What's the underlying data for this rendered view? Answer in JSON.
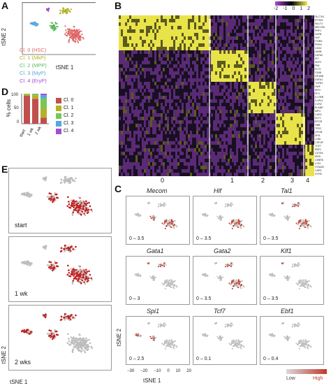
{
  "panels": {
    "A": {
      "label": "A",
      "x_axis": "tSNE 1",
      "y_axis": "tSNE 2",
      "legend": [
        {
          "text": "Cl. 0 (HSC)",
          "color": "#e06666"
        },
        {
          "text": "Cl. 1 (MkP)",
          "color": "#b5b12a"
        },
        {
          "text": "Cl. 2 (MPP)",
          "color": "#5fb85f"
        },
        {
          "text": "Cl. 3 (MyP)",
          "color": "#55a8e0"
        },
        {
          "text": "Cl. 4 (EryP)",
          "color": "#a24fd0"
        }
      ]
    },
    "B": {
      "label": "B",
      "colorbar_ticks": [
        "-2",
        "-1",
        "0",
        "1",
        "2"
      ],
      "cluster_labels": [
        "0",
        "1",
        "2",
        "3",
        "4"
      ],
      "genes": [
        "SLC7A1",
        "IFITM3",
        "MLLT3",
        "MECOM",
        "PRF1",
        "SAFB",
        "HLF",
        "ITGB3",
        "PRRX",
        "CD34",
        "JUNB",
        "GATA2",
        "KIT",
        "SDF2",
        "PIM",
        "FLT3",
        "CD48",
        "GP1BB",
        "GATA1",
        "TGFB1",
        "VWF",
        "IRF4",
        "PF4",
        "IL17RB",
        "IL1RL1",
        "CCR2",
        "ELANE",
        "MPO",
        "CAR2",
        "KLF1",
        "EPOR",
        "HBB",
        "TFRC",
        "GFI1B",
        "SPI1",
        "LY86",
        "CSF1R",
        "TCF7",
        "EBF1",
        "CD79A",
        "IRF8",
        "CEBPA",
        "LYZ2",
        "ITGA2B",
        "CAR1",
        "GYPA"
      ]
    },
    "C": {
      "label": "C",
      "x_axis": "tSNE 1",
      "y_axis": "tSNE 2",
      "x_ticks": [
        "−30",
        "−20",
        "−10",
        "0",
        "10",
        "20"
      ],
      "legend_low": "Low",
      "legend_high": "High",
      "genes": [
        {
          "name": "Mecom",
          "range": "0 – 3.5"
        },
        {
          "name": "Hlf",
          "range": "0 – 3.5"
        },
        {
          "name": "Tal1",
          "range": "0 – 3.5"
        },
        {
          "name": "Gata1",
          "range": "0 – 3"
        },
        {
          "name": "Gata2",
          "range": "0 – 3.5"
        },
        {
          "name": "Klf1",
          "range": "0 – 3.5"
        },
        {
          "name": "Spi1",
          "range": "0 – 2.5"
        },
        {
          "name": "Tcf7",
          "range": "0 – 0.1"
        },
        {
          "name": "Ebf1",
          "range": "0 – 0.4"
        }
      ]
    },
    "D": {
      "label": "D",
      "y_axis": "% cells",
      "y_ticks": [
        "100",
        "50",
        "0"
      ],
      "categories": [
        "start",
        "1 wk",
        "2 wk"
      ],
      "legend": [
        {
          "text": "Cl. 0",
          "color": "#c0504d"
        },
        {
          "text": "Cl. 1",
          "color": "#b5b12a"
        },
        {
          "text": "Cl. 2",
          "color": "#7cc653"
        },
        {
          "text": "Cl. 3",
          "color": "#55a8e0"
        },
        {
          "text": "Cl. 4",
          "color": "#a24fd0"
        }
      ]
    },
    "E": {
      "label": "E",
      "x_axis": "tSNE 1",
      "y_axis": "tSNE 2",
      "conditions": [
        "start",
        "1 wk",
        "2 wks"
      ]
    }
  },
  "chart_data": [
    {
      "type": "bar",
      "stacked": true,
      "categories": [
        "start",
        "1 wk",
        "2 wk"
      ],
      "series": [
        {
          "name": "Cl. 0",
          "values": [
            93,
            83,
            20
          ]
        },
        {
          "name": "Cl. 1",
          "values": [
            5,
            12,
            30
          ]
        },
        {
          "name": "Cl. 2",
          "values": [
            2,
            4,
            35
          ]
        },
        {
          "name": "Cl. 3",
          "values": [
            0,
            1,
            10
          ]
        },
        {
          "name": "Cl. 4",
          "values": [
            0,
            0,
            5
          ]
        }
      ],
      "ylabel": "% cells",
      "ylim": [
        0,
        100
      ]
    }
  ]
}
